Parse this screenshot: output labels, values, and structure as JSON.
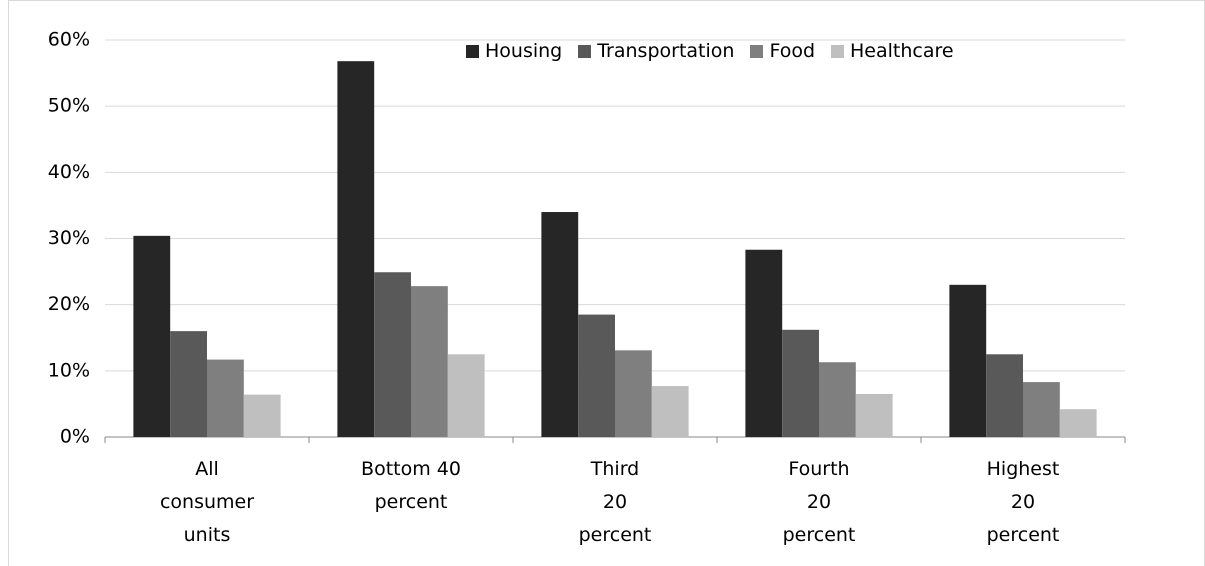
{
  "chart_data": {
    "type": "bar",
    "categories": [
      "All\nconsumer\nunits",
      "Bottom 40\npercent",
      "Third\n20\npercent",
      "Fourth\n20\npercent",
      "Highest\n20\npercent"
    ],
    "series": [
      {
        "name": "Housing",
        "color": "#262626",
        "values": [
          30.4,
          56.8,
          34.0,
          28.3,
          23.0
        ]
      },
      {
        "name": "Transportation",
        "color": "#595959",
        "values": [
          16.0,
          24.9,
          18.5,
          16.2,
          12.5
        ]
      },
      {
        "name": "Food",
        "color": "#7f7f7f",
        "values": [
          11.7,
          22.8,
          13.1,
          11.3,
          8.3
        ]
      },
      {
        "name": "Healthcare",
        "color": "#bfbfbf",
        "values": [
          6.4,
          12.5,
          7.7,
          6.5,
          4.2
        ]
      }
    ],
    "ylim": [
      0,
      60
    ],
    "yticks": [
      {
        "value": 0,
        "label": "0%"
      },
      {
        "value": 10,
        "label": "10%"
      },
      {
        "value": 20,
        "label": "20%"
      },
      {
        "value": 30,
        "label": "30%"
      },
      {
        "value": 40,
        "label": "40%"
      },
      {
        "value": 50,
        "label": "50%"
      },
      {
        "value": 60,
        "label": "60%"
      }
    ],
    "grid": true,
    "legend": "top"
  }
}
